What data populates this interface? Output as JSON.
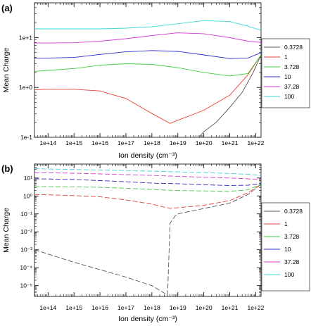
{
  "colors": {
    "0.3728": "#555555",
    "1": "#e8413c",
    "3.728": "#3fcf3f",
    "10": "#2a2ac8",
    "37.28": "#d83ad8",
    "100": "#3ad8d8"
  },
  "chart_data": [
    {
      "type": "line",
      "panel_label": "(a)",
      "title": "",
      "xlabel": "Ion density (cm⁻³)",
      "ylabel": "Mean Charge",
      "x_scale": "log",
      "y_scale": "log",
      "xlim": [
        30000000000000.0,
        1.6e+22
      ],
      "ylim": [
        0.1,
        50
      ],
      "x_ticks": [
        {
          "v": 100000000000000.0,
          "label": "1e+14"
        },
        {
          "v": 1000000000000000.0,
          "label": "1e+15"
        },
        {
          "v": 1e+16,
          "label": "1e+16"
        },
        {
          "v": 1e+17,
          "label": "1e+17"
        },
        {
          "v": 1e+18,
          "label": "1e+18"
        },
        {
          "v": 1e+19,
          "label": "1e+19"
        },
        {
          "v": 1e+20,
          "label": "1e+20"
        },
        {
          "v": 1e+21,
          "label": "1e+21"
        },
        {
          "v": 1e+22,
          "label": "1e+22"
        }
      ],
      "y_ticks": [
        {
          "v": 0.1,
          "label": "1e-1"
        },
        {
          "v": 1,
          "label": "1e+0"
        },
        {
          "v": 10,
          "label": "1e+1"
        }
      ],
      "grid": false,
      "legend_position": "right",
      "series": [
        {
          "name": "0.3728",
          "style": "solid",
          "points": [
            [
              6.5e+19,
              0.1
            ],
            [
              1e+20,
              0.13
            ],
            [
              3e+20,
              0.2
            ],
            [
              1e+21,
              0.4
            ],
            [
              3e+21,
              0.8
            ],
            [
              8e+21,
              2.0
            ],
            [
              1.6e+22,
              4.5
            ]
          ]
        },
        {
          "name": "1",
          "style": "solid",
          "points": [
            [
              30000000000000.0,
              0.9
            ],
            [
              100000000000000.0,
              0.92
            ],
            [
              1000000000000000.0,
              0.92
            ],
            [
              1e+16,
              0.85
            ],
            [
              1e+17,
              0.6
            ],
            [
              1e+18,
              0.3
            ],
            [
              5e+18,
              0.19
            ],
            [
              1e+19,
              0.22
            ],
            [
              1e+20,
              0.35
            ],
            [
              1e+21,
              0.7
            ],
            [
              5e+21,
              1.8
            ],
            [
              1.6e+22,
              4.5
            ]
          ]
        },
        {
          "name": "3.728",
          "style": "solid",
          "points": [
            [
              30000000000000.0,
              2.1
            ],
            [
              100000000000000.0,
              2.2
            ],
            [
              1000000000000000.0,
              2.4
            ],
            [
              1e+16,
              2.8
            ],
            [
              1e+17,
              3.0
            ],
            [
              1e+18,
              2.9
            ],
            [
              1e+19,
              2.5
            ],
            [
              1e+20,
              2.0
            ],
            [
              1e+21,
              1.7
            ],
            [
              5e+21,
              1.9
            ],
            [
              1.6e+22,
              4.5
            ]
          ]
        },
        {
          "name": "10",
          "style": "solid",
          "points": [
            [
              30000000000000.0,
              3.9
            ],
            [
              100000000000000.0,
              3.9
            ],
            [
              1000000000000000.0,
              4.0
            ],
            [
              1e+16,
              4.6
            ],
            [
              1e+17,
              5.2
            ],
            [
              1e+18,
              5.5
            ],
            [
              1e+19,
              5.3
            ],
            [
              1e+20,
              4.5
            ],
            [
              1e+21,
              3.8
            ],
            [
              5e+21,
              3.9
            ],
            [
              1.6e+22,
              5.0
            ]
          ]
        },
        {
          "name": "37.28",
          "style": "solid",
          "points": [
            [
              30000000000000.0,
              7.8
            ],
            [
              100000000000000.0,
              7.8
            ],
            [
              1000000000000000.0,
              7.9
            ],
            [
              1e+16,
              8.5
            ],
            [
              1e+17,
              9.5
            ],
            [
              1e+18,
              11
            ],
            [
              1e+19,
              12.5
            ],
            [
              1e+20,
              12
            ],
            [
              1e+21,
              10
            ],
            [
              5e+21,
              8.5
            ],
            [
              1.6e+22,
              8.0
            ]
          ]
        },
        {
          "name": "100",
          "style": "solid",
          "points": [
            [
              30000000000000.0,
              15
            ],
            [
              100000000000000.0,
              15
            ],
            [
              1000000000000000.0,
              15
            ],
            [
              1e+16,
              15
            ],
            [
              1e+17,
              15.5
            ],
            [
              1e+18,
              16.5
            ],
            [
              1e+19,
              19
            ],
            [
              1e+20,
              22
            ],
            [
              1e+21,
              21
            ],
            [
              5e+21,
              17
            ],
            [
              1.6e+22,
              14
            ]
          ]
        }
      ]
    },
    {
      "type": "line",
      "panel_label": "(b)",
      "title": "",
      "xlabel": "Ion density (cm⁻³)",
      "ylabel": "Mean Charge",
      "x_scale": "log",
      "y_scale": "log",
      "xlim": [
        30000000000000.0,
        1.6e+22
      ],
      "ylim": [
        2.5e-06,
        60
      ],
      "x_ticks": [
        {
          "v": 100000000000000.0,
          "label": "1e+14"
        },
        {
          "v": 1000000000000000.0,
          "label": "1e+15"
        },
        {
          "v": 1e+16,
          "label": "1e+16"
        },
        {
          "v": 1e+17,
          "label": "1e+17"
        },
        {
          "v": 1e+18,
          "label": "1e+18"
        },
        {
          "v": 1e+19,
          "label": "1e+19"
        },
        {
          "v": 1e+20,
          "label": "1e+20"
        },
        {
          "v": 1e+21,
          "label": "1e+21"
        },
        {
          "v": 1e+22,
          "label": "1e+22"
        }
      ],
      "y_ticks": [
        {
          "v": 1e-05,
          "label": "10⁻⁵"
        },
        {
          "v": 0.0001,
          "label": "10⁻⁴"
        },
        {
          "v": 0.001,
          "label": "10⁻³"
        },
        {
          "v": 0.01,
          "label": "10⁻²"
        },
        {
          "v": 0.1,
          "label": "10⁻¹"
        },
        {
          "v": 1,
          "label": "10⁰"
        },
        {
          "v": 10,
          "label": "10¹"
        }
      ],
      "grid": false,
      "legend_position": "right",
      "series": [
        {
          "name": "0.3728",
          "style": "dashed",
          "points": [
            [
              30000000000000.0,
              0.001
            ],
            [
              1000000000000000.0,
              0.0002
            ],
            [
              1e+17,
              3e-05
            ],
            [
              1e+18,
              1e-05
            ],
            [
              4e+18,
              3e-06
            ],
            [
              5e+18,
              0.03
            ],
            [
              8e+18,
              0.08
            ],
            [
              1e+19,
              0.1
            ],
            [
              1e+20,
              0.2
            ],
            [
              1e+21,
              0.4
            ],
            [
              5e+21,
              1.2
            ],
            [
              1.6e+22,
              4.5
            ]
          ]
        },
        {
          "name": "1",
          "style": "dashed",
          "points": [
            [
              30000000000000.0,
              1.2
            ],
            [
              100000000000000.0,
              1.15
            ],
            [
              1000000000000000.0,
              1.05
            ],
            [
              1e+16,
              0.9
            ],
            [
              1e+17,
              0.6
            ],
            [
              1e+18,
              0.35
            ],
            [
              5e+18,
              0.2
            ],
            [
              1e+19,
              0.22
            ],
            [
              1e+20,
              0.3
            ],
            [
              1e+21,
              0.55
            ],
            [
              5e+21,
              1.5
            ],
            [
              1.6e+22,
              4.5
            ]
          ]
        },
        {
          "name": "3.728",
          "style": "dashed",
          "points": [
            [
              30000000000000.0,
              3.3
            ],
            [
              100000000000000.0,
              3.3
            ],
            [
              1000000000000000.0,
              3.2
            ],
            [
              1e+16,
              3.0
            ],
            [
              1e+17,
              2.7
            ],
            [
              1e+18,
              2.3
            ],
            [
              1e+19,
              2.0
            ],
            [
              1e+20,
              1.9
            ],
            [
              1e+21,
              1.8
            ],
            [
              5e+21,
              2.2
            ],
            [
              1.6e+22,
              4.5
            ]
          ]
        },
        {
          "name": "10",
          "style": "dashed",
          "points": [
            [
              30000000000000.0,
              9.0
            ],
            [
              100000000000000.0,
              8.8
            ],
            [
              1000000000000000.0,
              8.2
            ],
            [
              1e+16,
              7.2
            ],
            [
              1e+17,
              6.2
            ],
            [
              1e+18,
              5.2
            ],
            [
              1e+19,
              4.8
            ],
            [
              1e+20,
              4.2
            ],
            [
              1e+21,
              3.8
            ],
            [
              5e+21,
              4.0
            ],
            [
              1.6e+22,
              4.8
            ]
          ]
        },
        {
          "name": "37.28",
          "style": "dashed",
          "points": [
            [
              30000000000000.0,
              20
            ],
            [
              100000000000000.0,
              19.5
            ],
            [
              1000000000000000.0,
              18.5
            ],
            [
              1e+16,
              17
            ],
            [
              1e+17,
              15.5
            ],
            [
              1e+18,
              14
            ],
            [
              1e+19,
              12.5
            ],
            [
              1e+20,
              11
            ],
            [
              1e+21,
              10
            ],
            [
              5e+21,
              9
            ],
            [
              1.6e+22,
              8
            ]
          ]
        },
        {
          "name": "100",
          "style": "dashed",
          "points": [
            [
              30000000000000.0,
              33
            ],
            [
              100000000000000.0,
              32
            ],
            [
              1000000000000000.0,
              30
            ],
            [
              1e+16,
              28
            ],
            [
              1e+17,
              26
            ],
            [
              1e+18,
              24
            ],
            [
              1e+19,
              22
            ],
            [
              1e+20,
              20
            ],
            [
              1e+21,
              18
            ],
            [
              5e+21,
              16
            ],
            [
              1.6e+22,
              14
            ]
          ]
        }
      ]
    }
  ]
}
